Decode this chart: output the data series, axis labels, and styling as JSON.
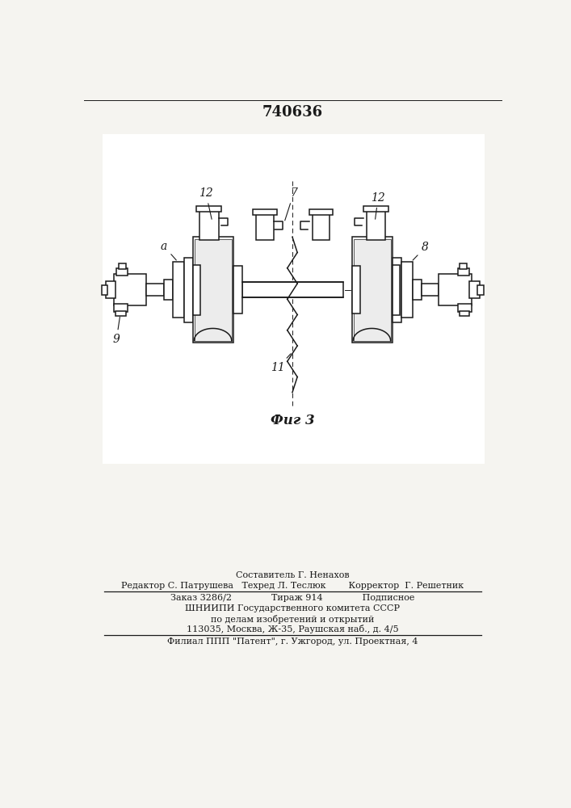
{
  "patent_number": "740636",
  "fig_label": "Фиг 3",
  "bg_color": "#f5f4f0",
  "draw_bg": "#ffffff",
  "text_color": "#1a1a1a",
  "lc": "#1a1a1a",
  "footer_lines": [
    "Составитель Г. Ненахов",
    "Редактор С. Патрушева   Техред Л. Теслюк        Корректор  Г. Решетник",
    "Заказ 3286/2              Тираж 914              Подписное",
    "ШНИИПИ Государственного комитета СССР",
    "по делам изобретений и открытий",
    "113035, Москва, Ж-35, Раушская наб., д. 4/5",
    "Филиал ППП \"Патент\", г. Ужгород, ул. Проектная, 4"
  ]
}
